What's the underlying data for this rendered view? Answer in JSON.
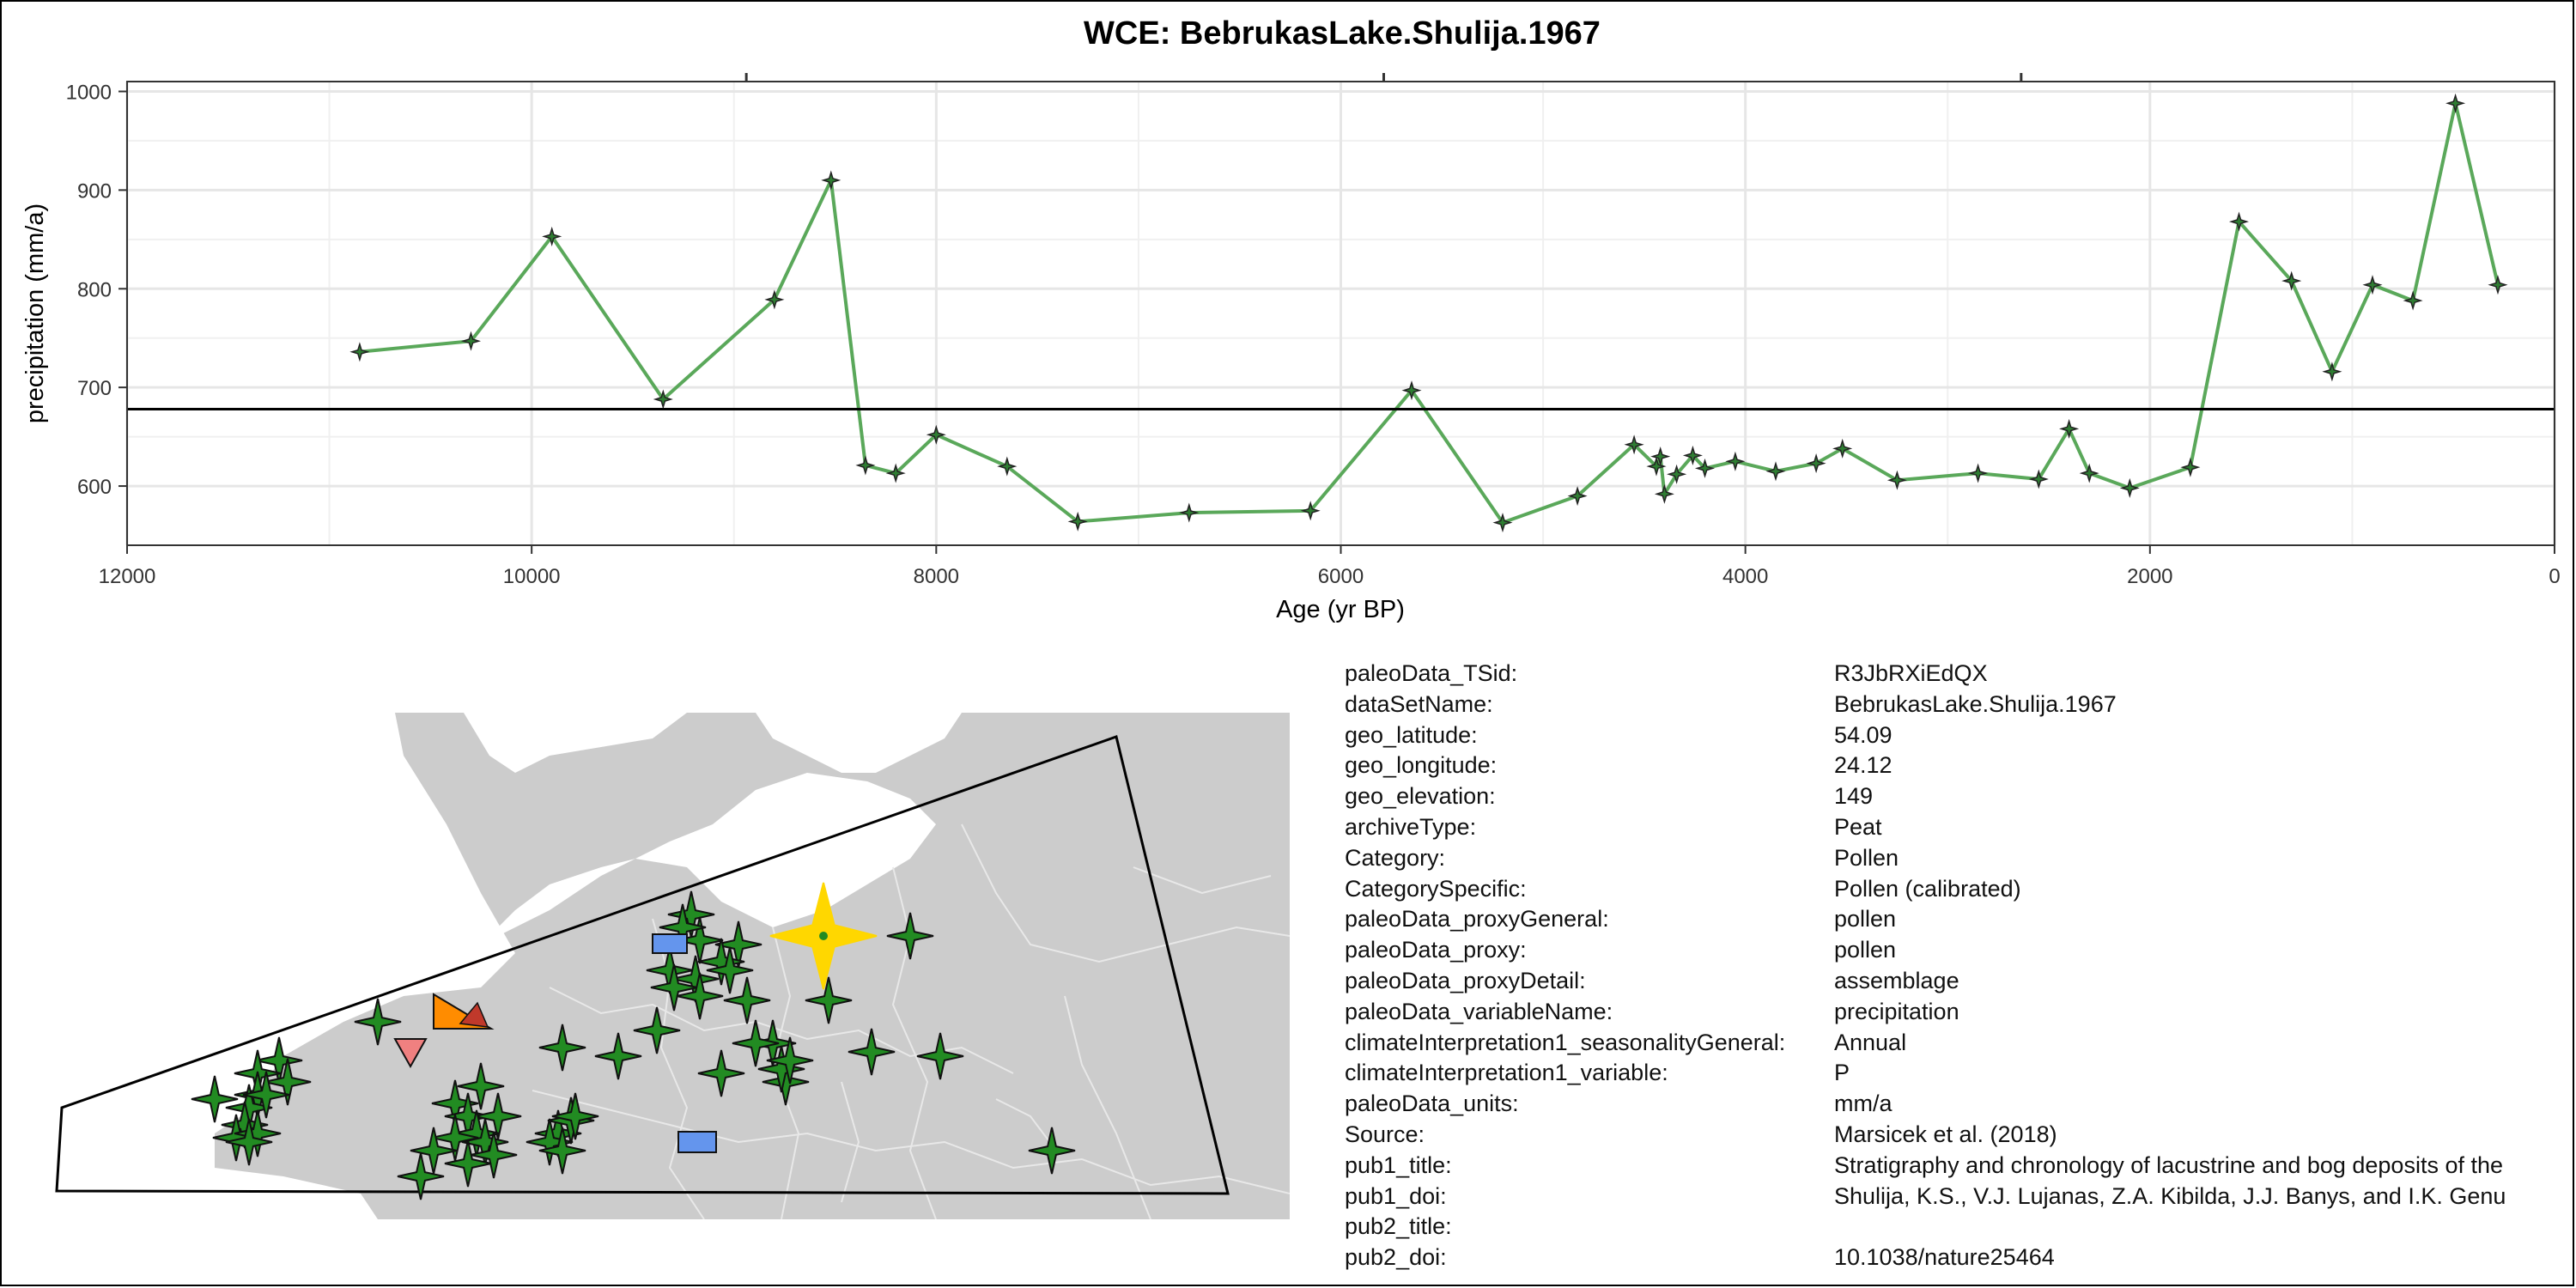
{
  "chart_data": {
    "type": "line",
    "title": "WCE: BebrukasLake.Shulija.1967",
    "xlabel": "Age (yr BP)",
    "ylabel": "precipitation (mm/a)",
    "xlim": [
      12000,
      0
    ],
    "ylim": [
      540,
      1010
    ],
    "x_ticks": [
      12000,
      10000,
      8000,
      6000,
      4000,
      2000,
      0
    ],
    "y_ticks": [
      600,
      700,
      800,
      900,
      1000
    ],
    "x_tick_labels": [
      "12000",
      "10000",
      "8000",
      "6000",
      "4000",
      "2000",
      "0"
    ],
    "y_tick_labels": [
      "600",
      "700",
      "800",
      "900",
      "1000"
    ],
    "reference_line": 678,
    "grid": true,
    "series": [
      {
        "x": [
          10850,
          10300,
          9900,
          9350,
          8800,
          8520,
          8350,
          8200,
          8000,
          7650,
          7300,
          6750,
          6150,
          5650,
          5200,
          4830,
          4550,
          4440,
          4420,
          4400,
          4340,
          4260,
          4200,
          4050,
          3850,
          3650,
          3520,
          3250,
          2850,
          2550,
          2400,
          2300,
          2100,
          1800,
          1560,
          1300,
          1100,
          900,
          700,
          490,
          280
        ],
        "y": [
          736,
          747,
          853,
          688,
          789,
          910,
          621,
          613,
          652,
          620,
          564,
          573,
          575,
          697,
          563,
          590,
          642,
          620,
          630,
          592,
          612,
          631,
          618,
          625,
          615,
          623,
          638,
          606,
          613,
          607,
          658,
          613,
          598,
          619,
          868,
          808,
          716,
          804,
          788,
          988,
          804
        ]
      }
    ]
  },
  "map": {
    "markers": [
      {
        "shape": "star",
        "color": "#228B22"
      },
      {
        "shape": "square",
        "color": "#6495ED"
      },
      {
        "shape": "triangle-down",
        "color": "#F08080"
      },
      {
        "shape": "triangle-right",
        "color": "#FF8C00"
      },
      {
        "shape": "star-large",
        "color": "#FFD700"
      }
    ]
  },
  "metadata": [
    {
      "key": "paleoData_TSid:",
      "value": "R3JbRXiEdQX"
    },
    {
      "key": "dataSetName:",
      "value": "BebrukasLake.Shulija.1967"
    },
    {
      "key": "geo_latitude:",
      "value": "54.09"
    },
    {
      "key": "geo_longitude:",
      "value": "24.12"
    },
    {
      "key": "geo_elevation:",
      "value": "149"
    },
    {
      "key": "archiveType:",
      "value": "Peat"
    },
    {
      "key": "Category:",
      "value": "Pollen"
    },
    {
      "key": "CategorySpecific:",
      "value": "Pollen (calibrated)"
    },
    {
      "key": "paleoData_proxyGeneral:",
      "value": "pollen"
    },
    {
      "key": "paleoData_proxy:",
      "value": "pollen"
    },
    {
      "key": "paleoData_proxyDetail:",
      "value": "assemblage"
    },
    {
      "key": "paleoData_variableName:",
      "value": "precipitation"
    },
    {
      "key": "climateInterpretation1_seasonalityGeneral:",
      "value": "Annual"
    },
    {
      "key": "climateInterpretation1_variable:",
      "value": "P"
    },
    {
      "key": "paleoData_units:",
      "value": "mm/a"
    },
    {
      "key": "Source:",
      "value": "Marsicek et al. (2018)"
    },
    {
      "key": "pub1_title:",
      "value": "Stratigraphy and chronology of lacustrine and bog deposits of the"
    },
    {
      "key": "pub1_doi:",
      "value": "Shulija, K.S., V.J. Lujanas, Z.A. Kibilda, J.J. Banys, and I.K. Genu"
    },
    {
      "key": "pub2_title:",
      "value": ""
    },
    {
      "key": "pub2_doi:",
      "value": "10.1038/nature25464"
    }
  ]
}
